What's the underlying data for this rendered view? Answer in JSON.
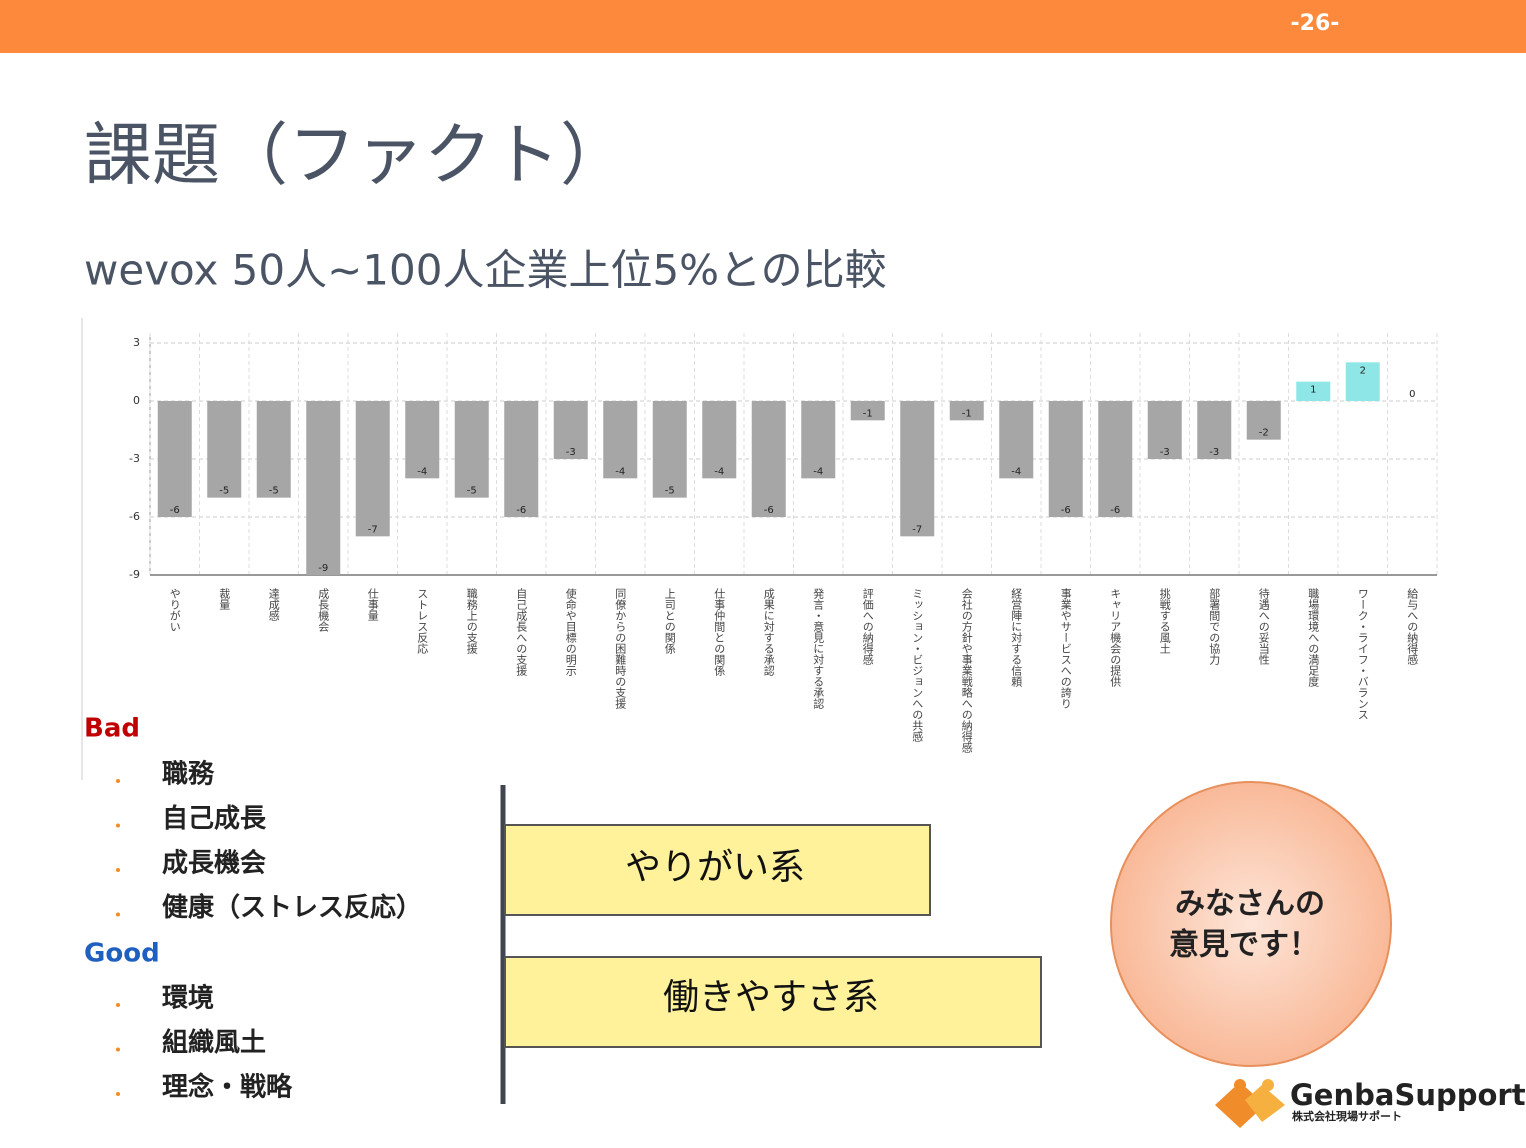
{
  "page_number": "-26-",
  "title": "課題（ファクト）",
  "subtitle": "wevox 50人~100人企業上位5%との比較",
  "chart_data": {
    "type": "bar",
    "categories": [
      "やりがい",
      "裁量",
      "達成感",
      "成長機会",
      "仕事量",
      "ストレス反応",
      "職務上の支援",
      "自己成長への支援",
      "使命や目標の明示",
      "同僚からの困難時の支援",
      "上司との関係",
      "仕事仲間との関係",
      "成果に対する承認",
      "発言・意見に対する承認",
      "評価への納得感",
      "ミッション・ビジョンへの共感",
      "会社の方針や事業戦略への納得感",
      "経営陣に対する信頼",
      "事業やサービスへの誇り",
      "キャリア機会の提供",
      "挑戦する風土",
      "部署間での協力",
      "待遇への妥当性",
      "職場環境への満足度",
      "ワーク・ライフ・バランス",
      "給与への納得感"
    ],
    "values": [
      -6,
      -5,
      -5,
      -9,
      -7,
      -4,
      -5,
      -6,
      -3,
      -4,
      -5,
      -4,
      -6,
      -4,
      -1,
      -7,
      -1,
      -4,
      -6,
      -6,
      -3,
      -3,
      -2,
      1,
      2,
      0
    ],
    "color": "#a6a6a6",
    "positive_color": "#8fe6e6",
    "ylim": [
      -9,
      3
    ],
    "yticks": [
      -9,
      -6,
      -3,
      0,
      3
    ],
    "grid": true
  },
  "list": {
    "bad_label": "Bad",
    "bad_items": [
      "職務",
      "自己成長",
      "成長機会",
      "健康（ストレス反応）"
    ],
    "good_label": "Good",
    "good_items": [
      "環境",
      "組織風土",
      "理念・戦略"
    ]
  },
  "boxes": [
    "やりがい系",
    "働きやすさ系"
  ],
  "bubble": [
    "みなさんの",
    "意見です！"
  ],
  "logo": {
    "name": "GenbaSupport",
    "sub": "株式会社現場サポート"
  }
}
